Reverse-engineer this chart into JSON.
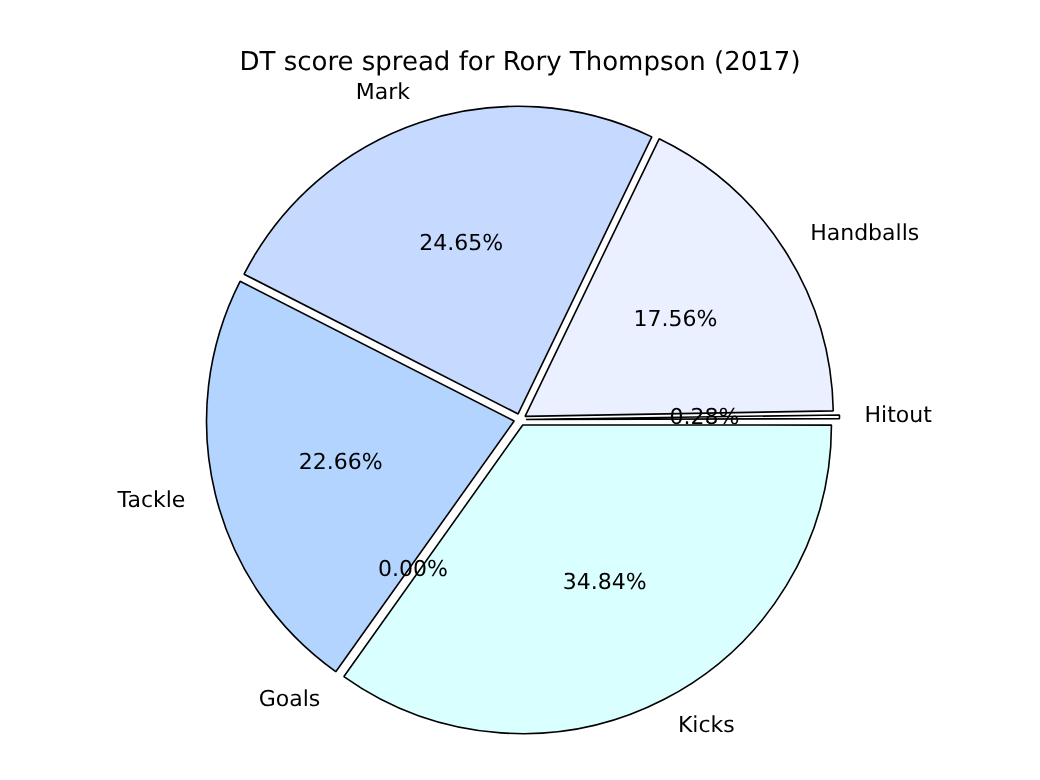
{
  "chart_data": {
    "type": "pie",
    "title": "DT score spread for Rory Thompson (2017)",
    "categories": [
      "Hitout",
      "Handballs",
      "Mark",
      "Tackle",
      "Goals",
      "Kicks"
    ],
    "values": [
      0.28,
      17.56,
      24.65,
      22.66,
      0,
      34.84
    ],
    "value_labels": [
      "0.28%",
      "17.56%",
      "24.65%",
      "22.66%",
      "0.00%",
      "34.84%"
    ],
    "colors": [
      "#ffffff",
      "#eaf0ff",
      "#c6d9ff",
      "#b3d4ff",
      "#a6c8ff",
      "#d9ffff"
    ],
    "legend": false
  }
}
